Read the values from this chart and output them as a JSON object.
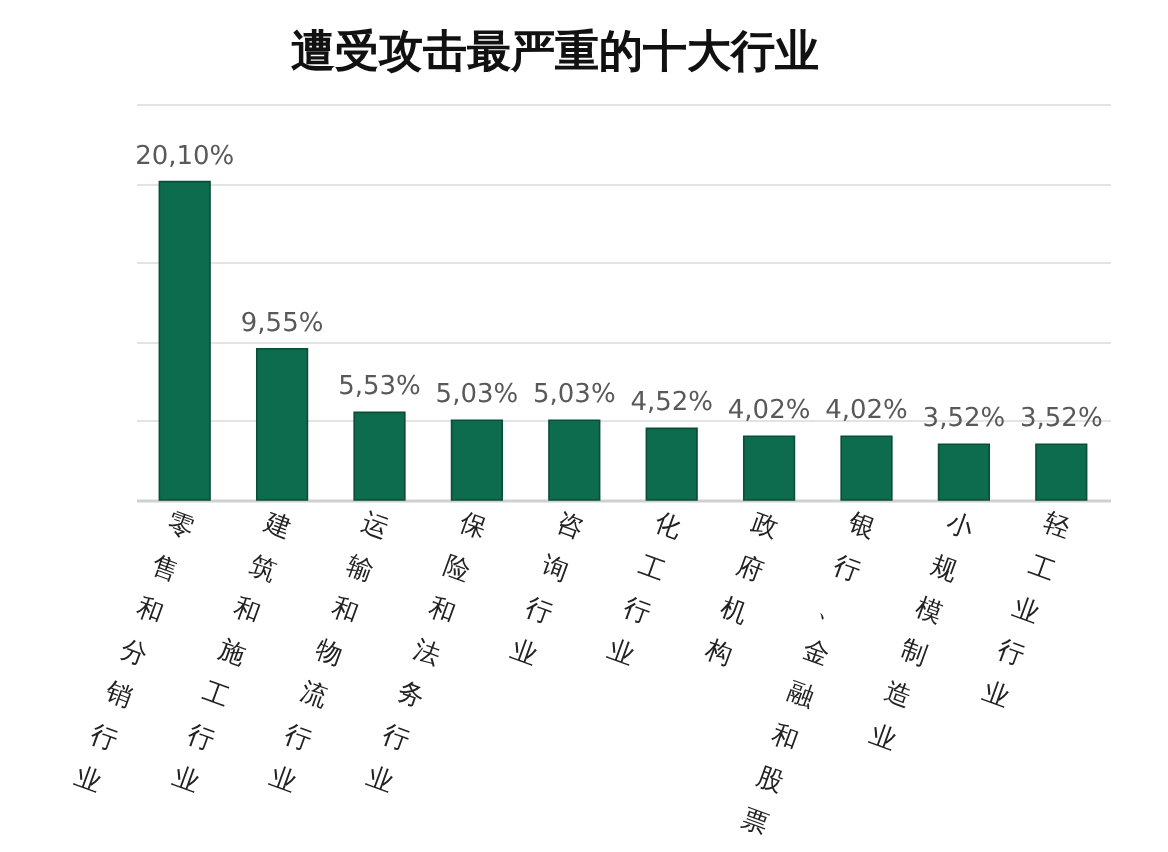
{
  "chart_data": {
    "type": "bar",
    "title": "遭受攻击最严重的十大行业",
    "categories": [
      "零售和分销行业",
      "建筑和施工行业",
      "运输和物流行业",
      "保险和法务行业",
      "咨询行业",
      "化工行业",
      "政府机构",
      "银行、金融和股票",
      "小规模制造业",
      "轻工业行业"
    ],
    "values": [
      20.1,
      9.55,
      5.53,
      5.03,
      5.03,
      4.52,
      4.02,
      4.02,
      3.52,
      3.52
    ],
    "value_labels": [
      "20,10%",
      "9,55%",
      "5,53%",
      "5,03%",
      "5,03%",
      "4,52%",
      "4,02%",
      "4,02%",
      "3,52%",
      "3,52%"
    ],
    "color": "#0d6b4e",
    "ylim": [
      0,
      25
    ],
    "yticks": [
      {
        "value": 0,
        "label": null
      },
      {
        "value": 5,
        "label": null
      },
      {
        "value": 10,
        "label": null
      },
      {
        "value": 15,
        "label": null
      },
      {
        "value": 20,
        "label": null
      },
      {
        "value": 25,
        "label": null
      }
    ],
    "grid": "y",
    "tick_labels": "x"
  }
}
